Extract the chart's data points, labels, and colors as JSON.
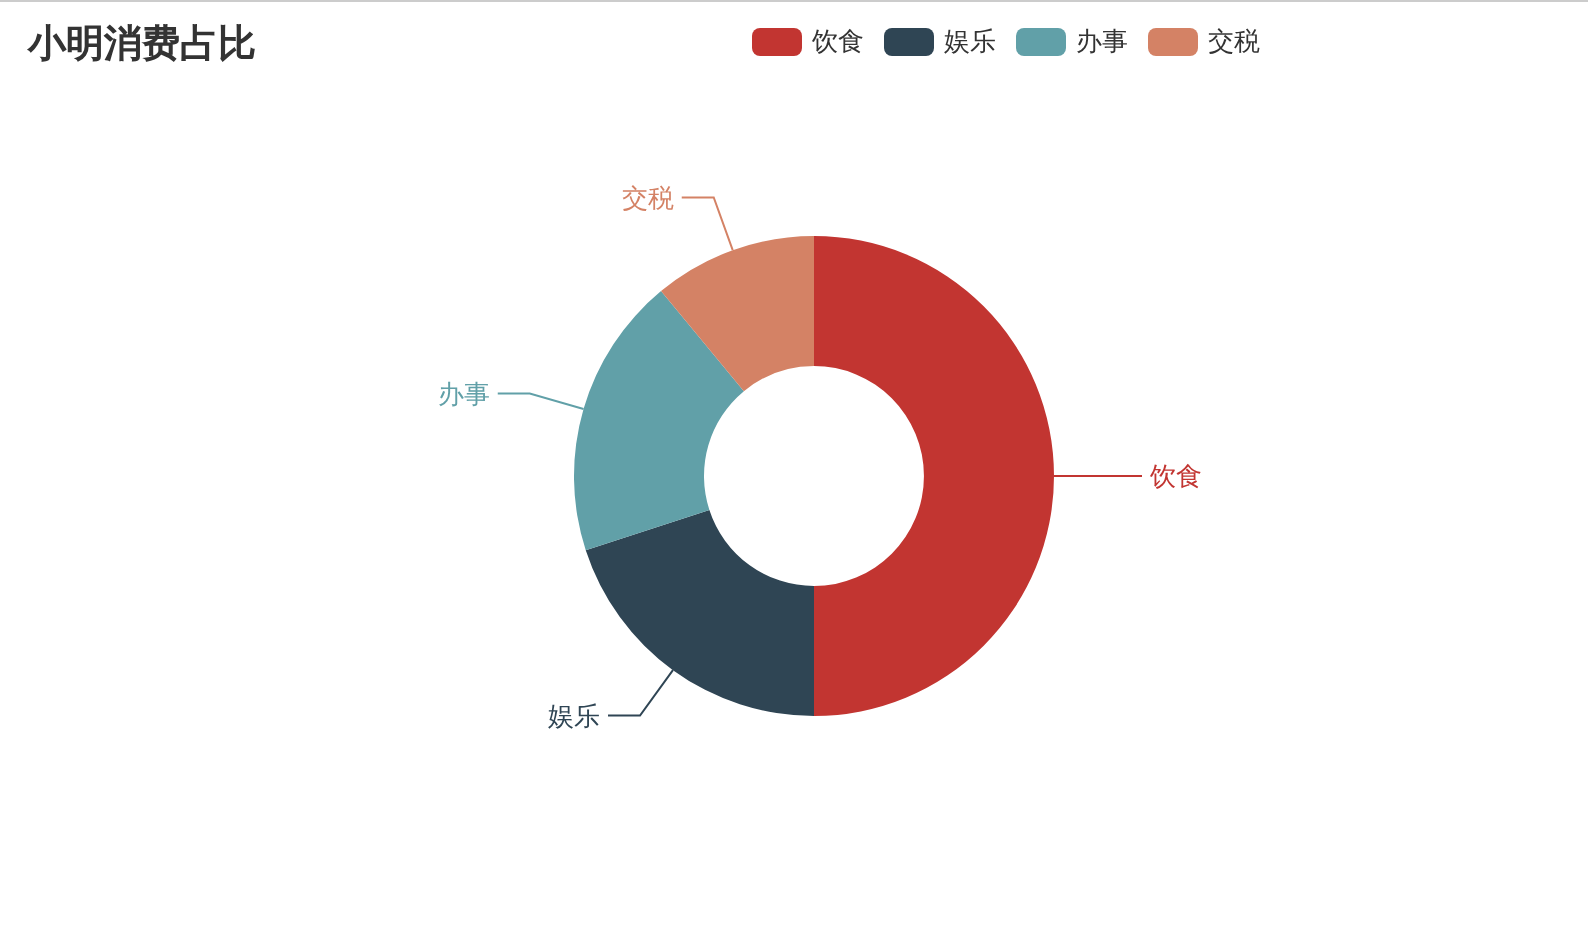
{
  "chart_data": {
    "type": "donut",
    "title": "小明消费占比",
    "categories": [
      "饮食",
      "娱乐",
      "办事",
      "交税"
    ],
    "values": [
      50,
      20,
      19,
      11
    ],
    "colors": [
      "#c23531",
      "#2f4554",
      "#61a0a8",
      "#d48265"
    ],
    "legend": "top right"
  }
}
